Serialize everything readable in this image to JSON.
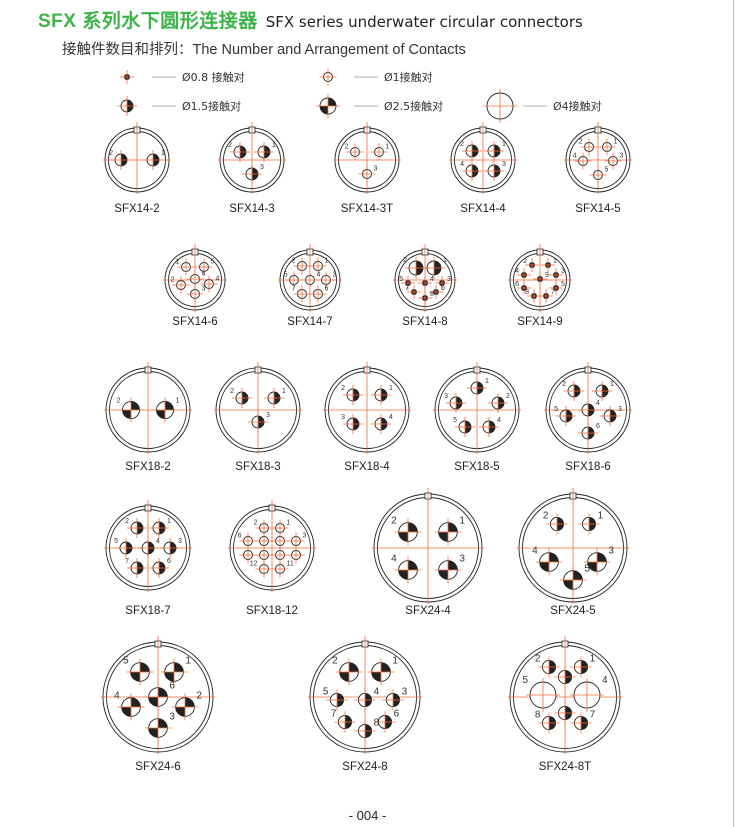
{
  "header": {
    "title_cn": "SFX 系列水下圆形连接器",
    "title_en": "SFX series underwater circular connectors",
    "subtitle": "接触件数目和排列：The Number and Arrangement of Contacts"
  },
  "legend": [
    {
      "type": "0.8",
      "label": "Ø0.8  接触对"
    },
    {
      "type": "1",
      "label": "Ø1接触对"
    },
    {
      "type": "1.5",
      "label": "Ø1.5接触对"
    },
    {
      "type": "2.5",
      "label": "Ø2.5接触对"
    },
    {
      "type": "4",
      "label": "Ø4接触对"
    }
  ],
  "colors": {
    "accent_green": "#3cb44a",
    "crosshair": "#f26b3a",
    "outline": "#222222"
  },
  "connectors": [
    {
      "name": "SFX14-2",
      "contacts": [
        {
          "label": "2",
          "type": "1.5"
        },
        {
          "label": "1",
          "type": "1.5"
        }
      ]
    },
    {
      "name": "SFX14-3",
      "contacts": [
        {
          "label": "2",
          "type": "1.5"
        },
        {
          "label": "1",
          "type": "1.5"
        },
        {
          "label": "3",
          "type": "1.5"
        }
      ]
    },
    {
      "name": "SFX14-3T",
      "contacts": [
        {
          "label": "2",
          "type": "1"
        },
        {
          "label": "1",
          "type": "1"
        },
        {
          "label": "3",
          "type": "1"
        }
      ]
    },
    {
      "name": "SFX14-4",
      "contacts": [
        {
          "label": "2",
          "type": "1.5"
        },
        {
          "label": "1",
          "type": "1.5"
        },
        {
          "label": "4",
          "type": "1.5"
        },
        {
          "label": "3",
          "type": "1.5"
        }
      ]
    },
    {
      "name": "SFX14-5",
      "contacts": [
        {
          "label": "2",
          "type": "1"
        },
        {
          "label": "1",
          "type": "1"
        },
        {
          "label": "4",
          "type": "1"
        },
        {
          "label": "3",
          "type": "1"
        },
        {
          "label": "5",
          "type": "1"
        }
      ]
    },
    {
      "name": "SFX14-6",
      "contacts": [
        {
          "label": "1",
          "type": "1"
        },
        {
          "label": "5",
          "type": "1"
        },
        {
          "label": "2",
          "type": "1"
        },
        {
          "label": "6",
          "type": "1"
        },
        {
          "label": "4",
          "type": "1"
        },
        {
          "label": "3",
          "type": "1"
        }
      ]
    },
    {
      "name": "SFX14-7",
      "contacts": [
        {
          "label": "2",
          "type": "1"
        },
        {
          "label": "1",
          "type": "1"
        },
        {
          "label": "5",
          "type": "1"
        },
        {
          "label": "4",
          "type": "1"
        },
        {
          "label": "3",
          "type": "1"
        },
        {
          "label": "7",
          "type": "1"
        },
        {
          "label": "6",
          "type": "1"
        }
      ]
    },
    {
      "name": "SFX14-8",
      "contacts": [
        {
          "label": "2",
          "type": "1.5"
        },
        {
          "label": "1",
          "type": "1.5"
        },
        {
          "label": "5",
          "type": "0.8"
        },
        {
          "label": "4",
          "type": "0.8"
        },
        {
          "label": "3",
          "type": "0.8"
        },
        {
          "label": "7",
          "type": "0.8"
        },
        {
          "label": "6",
          "type": "0.8"
        },
        {
          "label": "8",
          "type": "0.8"
        }
      ]
    },
    {
      "name": "SFX14-9",
      "contacts": [
        {
          "label": "2",
          "type": "0.8"
        },
        {
          "label": "1",
          "type": "0.8"
        },
        {
          "label": "4",
          "type": "0.8"
        },
        {
          "label": "3",
          "type": "0.8"
        },
        {
          "label": "9",
          "type": "0.8"
        },
        {
          "label": "6",
          "type": "0.8"
        },
        {
          "label": "5",
          "type": "0.8"
        },
        {
          "label": "8",
          "type": "0.8"
        },
        {
          "label": "7",
          "type": "0.8"
        }
      ]
    },
    {
      "name": "SFX18-2",
      "contacts": [
        {
          "label": "2",
          "type": "2.5"
        },
        {
          "label": "1",
          "type": "2.5"
        }
      ]
    },
    {
      "name": "SFX18-3",
      "contacts": [
        {
          "label": "2",
          "type": "1.5"
        },
        {
          "label": "1",
          "type": "1.5"
        },
        {
          "label": "3",
          "type": "1.5"
        }
      ]
    },
    {
      "name": "SFX18-4",
      "contacts": [
        {
          "label": "2",
          "type": "1.5"
        },
        {
          "label": "1",
          "type": "1.5"
        },
        {
          "label": "3",
          "type": "1.5"
        },
        {
          "label": "4",
          "type": "1.5"
        }
      ]
    },
    {
      "name": "SFX18-5",
      "contacts": [
        {
          "label": "1",
          "type": "1.5"
        },
        {
          "label": "3",
          "type": "1.5"
        },
        {
          "label": "2",
          "type": "1.5"
        },
        {
          "label": "5",
          "type": "1.5"
        },
        {
          "label": "4",
          "type": "1.5"
        }
      ]
    },
    {
      "name": "SFX18-6",
      "contacts": [
        {
          "label": "2",
          "type": "1.5"
        },
        {
          "label": "1",
          "type": "1.5"
        },
        {
          "label": "4",
          "type": "1.5"
        },
        {
          "label": "5",
          "type": "1.5"
        },
        {
          "label": "3",
          "type": "1.5"
        },
        {
          "label": "6",
          "type": "1.5"
        }
      ]
    },
    {
      "name": "SFX18-7",
      "contacts": [
        {
          "label": "2",
          "type": "1.5"
        },
        {
          "label": "1",
          "type": "1.5"
        },
        {
          "label": "5",
          "type": "1.5"
        },
        {
          "label": "4",
          "type": "1.5"
        },
        {
          "label": "3",
          "type": "1.5"
        },
        {
          "label": "7",
          "type": "1.5"
        },
        {
          "label": "6",
          "type": "1.5"
        }
      ]
    },
    {
      "name": "SFX18-12",
      "contacts": [
        {
          "label": "2",
          "type": "1"
        },
        {
          "label": "1",
          "type": "1"
        },
        {
          "label": "6",
          "type": "1"
        },
        {
          "label": "",
          "type": "1"
        },
        {
          "label": "",
          "type": "1"
        },
        {
          "label": "3",
          "type": "1"
        },
        {
          "label": "",
          "type": "1"
        },
        {
          "label": "",
          "type": "1"
        },
        {
          "label": "",
          "type": "1"
        },
        {
          "label": "",
          "type": "1"
        },
        {
          "label": "12",
          "type": "1"
        },
        {
          "label": "11",
          "type": "1"
        }
      ]
    },
    {
      "name": "SFX24-4",
      "contacts": [
        {
          "label": "2",
          "type": "2.5"
        },
        {
          "label": "1",
          "type": "2.5"
        },
        {
          "label": "4",
          "type": "2.5"
        },
        {
          "label": "3",
          "type": "2.5"
        }
      ]
    },
    {
      "name": "SFX24-5",
      "contacts": [
        {
          "label": "2",
          "type": "1.5"
        },
        {
          "label": "1",
          "type": "1.5"
        },
        {
          "label": "4",
          "type": "2.5"
        },
        {
          "label": "3",
          "type": "2.5"
        },
        {
          "label": "5",
          "type": "2.5"
        }
      ]
    },
    {
      "name": "SFX24-6",
      "contacts": [
        {
          "label": "5",
          "type": "2.5"
        },
        {
          "label": "1",
          "type": "2.5"
        },
        {
          "label": "4",
          "type": "2.5"
        },
        {
          "label": "6",
          "type": "2.5"
        },
        {
          "label": "2",
          "type": "2.5"
        },
        {
          "label": "3",
          "type": "2.5"
        }
      ]
    },
    {
      "name": "SFX24-8",
      "contacts": [
        {
          "label": "2",
          "type": "2.5"
        },
        {
          "label": "1",
          "type": "2.5"
        },
        {
          "label": "5",
          "type": "1.5"
        },
        {
          "label": "4",
          "type": "1.5"
        },
        {
          "label": "3",
          "type": "1.5"
        },
        {
          "label": "7",
          "type": "1.5"
        },
        {
          "label": "6",
          "type": "1.5"
        },
        {
          "label": "8",
          "type": "1.5"
        }
      ]
    },
    {
      "name": "SFX24-8T",
      "contacts": [
        {
          "label": "2",
          "type": "1.5"
        },
        {
          "label": "1",
          "type": "1.5"
        },
        {
          "label": "",
          "type": "1.5"
        },
        {
          "label": "5",
          "type": "4"
        },
        {
          "label": "4",
          "type": "4"
        },
        {
          "label": "",
          "type": "1.5"
        },
        {
          "label": "8",
          "type": "1.5"
        },
        {
          "label": "7",
          "type": "1.5"
        }
      ]
    }
  ],
  "footer": {
    "page_number": "- 004 -"
  }
}
